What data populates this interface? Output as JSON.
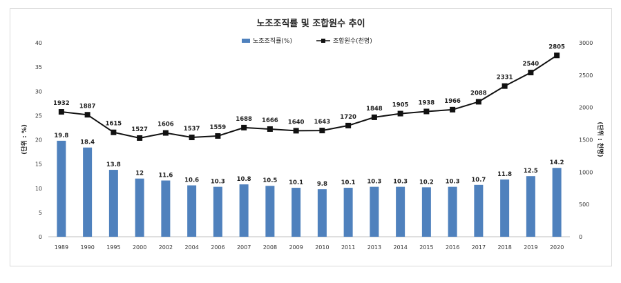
{
  "chart_data": {
    "type": "bar",
    "title": "노조조직률 및 조합원수 추이",
    "categories": [
      "1989",
      "1990",
      "1995",
      "2000",
      "2002",
      "2004",
      "2006",
      "2007",
      "2008",
      "2009",
      "2010",
      "2011",
      "2013",
      "2014",
      "2015",
      "2016",
      "2017",
      "2018",
      "2019",
      "2020"
    ],
    "series": [
      {
        "name": "노조조직률(%)",
        "type": "bar",
        "axis": "left",
        "color": "#4f81bd",
        "values": [
          19.8,
          18.4,
          13.8,
          12,
          11.6,
          10.6,
          10.3,
          10.8,
          10.5,
          10.1,
          9.8,
          10.1,
          10.3,
          10.3,
          10.2,
          10.3,
          10.7,
          11.8,
          12.5,
          14.2
        ]
      },
      {
        "name": "조합원수(천명)",
        "type": "line",
        "axis": "right",
        "color": "#111111",
        "values": [
          1932,
          1887,
          1615,
          1527,
          1606,
          1537,
          1559,
          1688,
          1666,
          1640,
          1643,
          1720,
          1848,
          1905,
          1938,
          1966,
          2088,
          2331,
          2540,
          2805
        ]
      }
    ],
    "ylabel": "(단위 : %)",
    "ylabel_right": "(단위 : 천명)",
    "ylim": [
      0,
      40
    ],
    "yticks": [
      0,
      5,
      10,
      15,
      20,
      25,
      30,
      35,
      40
    ],
    "ylim_right": [
      0,
      3000
    ],
    "yticks_right": [
      0,
      500,
      1000,
      1500,
      2000,
      2500,
      3000
    ],
    "legend_position": "top-center",
    "grid": false
  }
}
